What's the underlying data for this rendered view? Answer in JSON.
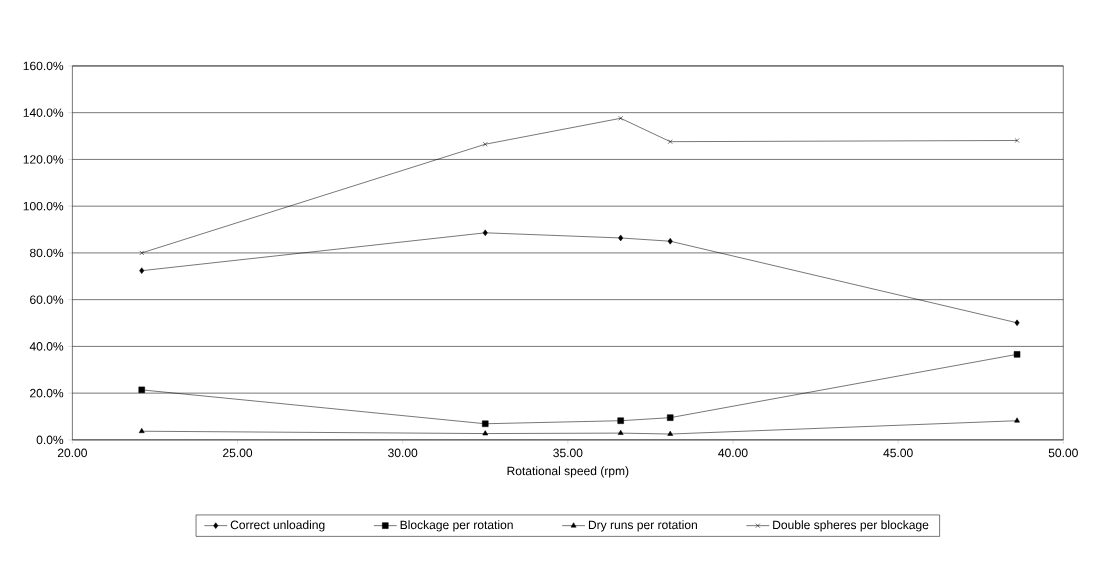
{
  "chart_data": {
    "type": "line",
    "xlabel": "Rotational speed (rpm)",
    "x": [
      22.1,
      32.5,
      36.6,
      38.1,
      48.6
    ],
    "xlim": [
      20,
      50
    ],
    "xticks": [
      {
        "value": 20,
        "label": "20.00"
      },
      {
        "value": 25,
        "label": "25.00"
      },
      {
        "value": 30,
        "label": "30.00"
      },
      {
        "value": 35,
        "label": "35.00"
      },
      {
        "value": 40,
        "label": "40.00"
      },
      {
        "value": 45,
        "label": "45.00"
      },
      {
        "value": 50,
        "label": "50.00"
      }
    ],
    "ylim": [
      0,
      160
    ],
    "yticks": [
      {
        "value": 0,
        "label": "0.0%"
      },
      {
        "value": 20,
        "label": "20.0%"
      },
      {
        "value": 40,
        "label": "40.0%"
      },
      {
        "value": 60,
        "label": "60.0%"
      },
      {
        "value": 80,
        "label": "80.0%"
      },
      {
        "value": 100,
        "label": "100.0%"
      },
      {
        "value": 120,
        "label": "120.0%"
      },
      {
        "value": 140,
        "label": "140.0%"
      },
      {
        "value": 160,
        "label": "160.0%"
      }
    ],
    "grid": "y",
    "legend": "bottom",
    "series": [
      {
        "name": "Correct unloading",
        "color": "#000000",
        "marker": "diamond",
        "values": [
          72.4,
          88.6,
          86.4,
          85.0,
          50.1
        ]
      },
      {
        "name": "Blockage per rotation",
        "color": "#000000",
        "marker": "square",
        "values": [
          21.4,
          6.9,
          8.2,
          9.5,
          36.6
        ]
      },
      {
        "name": "Dry runs per rotation",
        "color": "#000000",
        "marker": "triangle",
        "values": [
          3.7,
          2.7,
          2.9,
          2.5,
          8.2
        ]
      },
      {
        "name": "Double spheres per blockage",
        "color": "#000000",
        "marker": "cross",
        "values": [
          80.0,
          126.5,
          137.6,
          127.6,
          128.1
        ]
      }
    ]
  }
}
